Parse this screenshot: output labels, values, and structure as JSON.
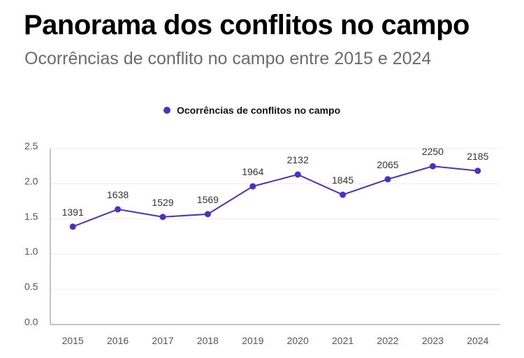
{
  "chart_data": {
    "type": "line",
    "title": "Panorama dos conflitos no campo",
    "subtitle": "Ocorrências de conflito no campo entre 2015 e 2024",
    "categories": [
      "2015",
      "2016",
      "2017",
      "2018",
      "2019",
      "2020",
      "2021",
      "2022",
      "2023",
      "2024"
    ],
    "series": [
      {
        "name": "Ocorrências de conflitos no campo",
        "values": [
          1391,
          1638,
          1529,
          1569,
          1964,
          2132,
          1845,
          2065,
          2250,
          2185
        ],
        "color": "#4a2fc9"
      }
    ],
    "data_labels": [
      "1391",
      "1638",
      "1529",
      "1569",
      "1964",
      "2132",
      "1845",
      "2065",
      "2250",
      "2185"
    ],
    "y_ticks": [
      "0.0",
      "0.5",
      "1.0",
      "1.5",
      "2.0",
      "2.5"
    ],
    "y_tick_values": [
      0,
      500,
      1000,
      1500,
      2000,
      2500
    ],
    "ylim": [
      0,
      2500
    ],
    "legend_position": "top-center",
    "grid": true
  }
}
